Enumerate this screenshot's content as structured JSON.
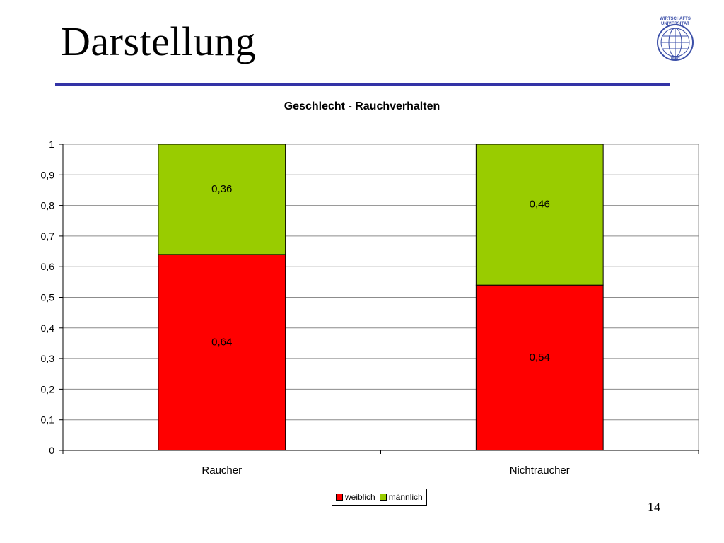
{
  "slide": {
    "title": "Darstellung",
    "page_number": "14",
    "logo_text": [
      "WIRTSCHAFTS",
      "UNIVERSITÄT",
      "WIEN"
    ]
  },
  "colors": {
    "rule": "#3333a6",
    "weiblich": "#ff0000",
    "maennlich": "#99cc00"
  },
  "chart_data": {
    "type": "bar",
    "stacked": true,
    "title": "Geschlecht - Rauchverhalten",
    "xlabel": "",
    "ylabel": "",
    "categories": [
      "Raucher",
      "Nichtraucher"
    ],
    "series": [
      {
        "name": "weiblich",
        "values": [
          0.64,
          0.54
        ],
        "labels": [
          "0,64",
          "0,54"
        ],
        "color": "#ff0000"
      },
      {
        "name": "männlich",
        "values": [
          0.36,
          0.46
        ],
        "labels": [
          "0,36",
          "0,46"
        ],
        "color": "#99cc00"
      }
    ],
    "ylim": [
      0,
      1
    ],
    "yticks": [
      0,
      0.1,
      0.2,
      0.3,
      0.4,
      0.5,
      0.6,
      0.7,
      0.8,
      0.9,
      1
    ],
    "ytick_labels": [
      "0",
      "0,1",
      "0,2",
      "0,3",
      "0,4",
      "0,5",
      "0,6",
      "0,7",
      "0,8",
      "0,9",
      "1"
    ],
    "grid": true,
    "legend_position": "bottom"
  }
}
